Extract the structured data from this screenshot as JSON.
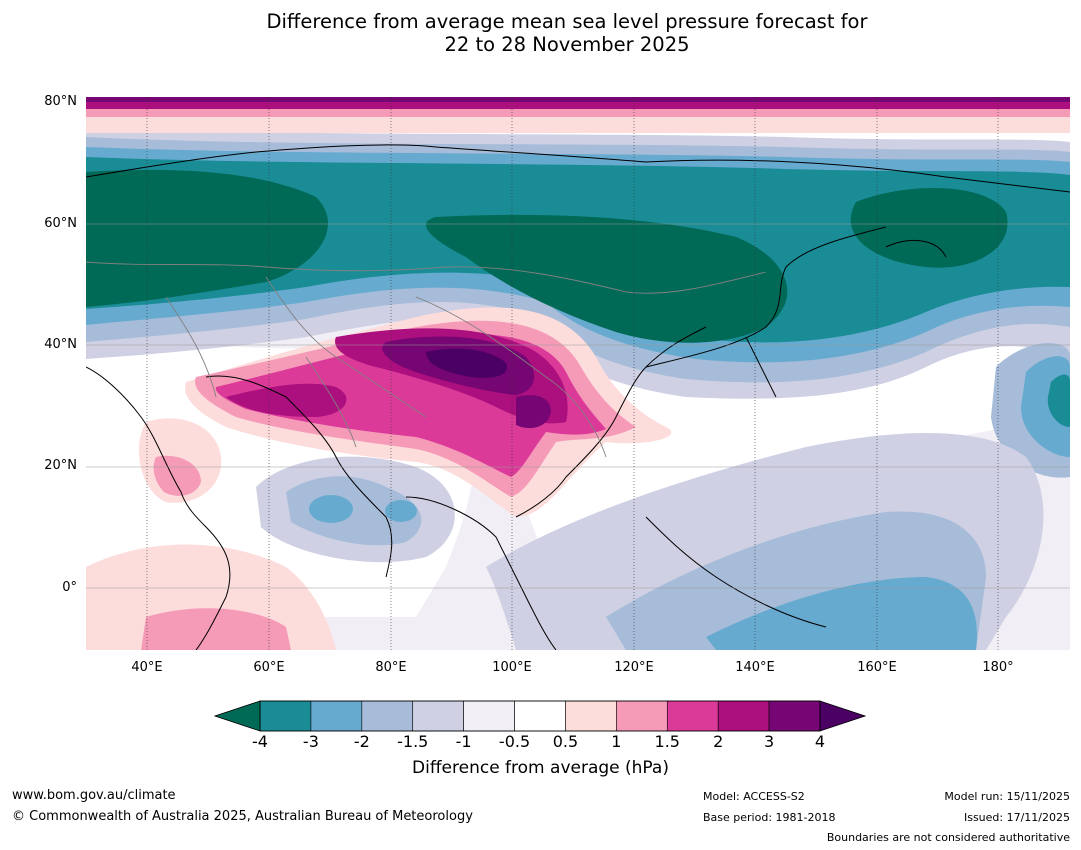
{
  "title": {
    "line1": "Difference from average mean sea level pressure forecast for",
    "line2": "22 to 28 November 2025"
  },
  "map": {
    "lat_labels": [
      "80°N",
      "60°N",
      "40°N",
      "20°N",
      "0°"
    ],
    "lon_labels": [
      "40°E",
      "60°E",
      "80°E",
      "100°E",
      "120°E",
      "140°E",
      "160°E",
      "180°"
    ]
  },
  "colorbar": {
    "ticks": [
      "-4",
      "-3",
      "-2",
      "-1.5",
      "-1",
      "-0.5",
      "0.5",
      "1",
      "1.5",
      "2",
      "3",
      "4"
    ],
    "colors": [
      "#1a8c96",
      "#66aad0",
      "#a6bcd8",
      "#cfd0e3",
      "#f1eef5",
      "#ffffff",
      "#fddcdc",
      "#f59bb8",
      "#db3a98",
      "#ac0f7e",
      "#760673"
    ],
    "under_color": "#006a57",
    "over_color": "#4b0064",
    "label": "Difference from average (hPa)"
  },
  "footer": {
    "website": "www.bom.gov.au/climate",
    "copyright": "© Commonwealth of Australia 2025, Australian Bureau of Meteorology",
    "model": "Model: ACCESS-S2",
    "base_period": "Base period: 1981-2018",
    "model_run": "Model run: 15/11/2025",
    "issued": "Issued: 17/11/2025",
    "boundaries": "Boundaries are not considered authoritative"
  }
}
